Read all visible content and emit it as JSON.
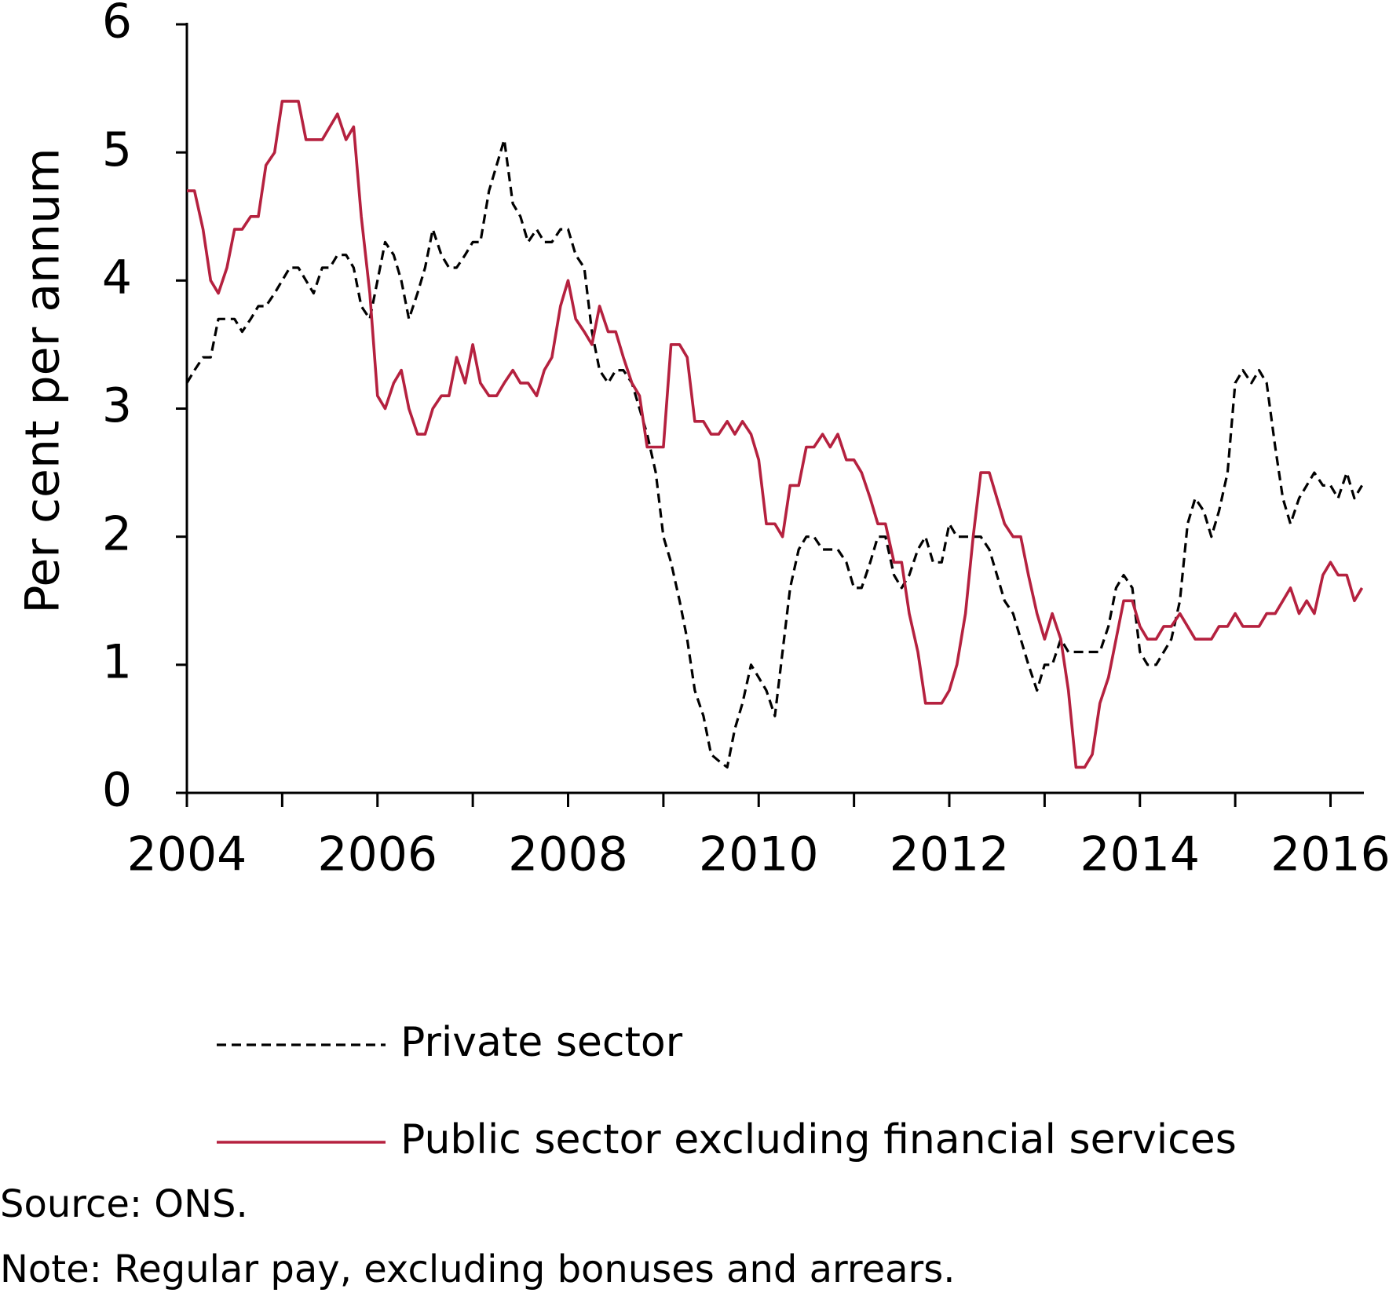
{
  "chart_data": {
    "type": "line",
    "y_label": "Per cent per annum",
    "source": "Source: ONS.",
    "note": "Note: Regular pay, excluding bonuses and arrears.",
    "xlim": [
      2004,
      2016.35
    ],
    "xticks": [
      2004,
      2006,
      2008,
      2010,
      2012,
      2014,
      2016
    ],
    "minor_xticks": [
      2005,
      2007,
      2009,
      2011,
      2013,
      2015
    ],
    "ylim": [
      0,
      6
    ],
    "yticks": [
      0,
      1,
      2,
      3,
      4,
      5,
      6
    ],
    "x": [
      2004,
      2004.08,
      2004.17,
      2004.25,
      2004.33,
      2004.42,
      2004.5,
      2004.58,
      2004.67,
      2004.75,
      2004.83,
      2004.92,
      2005,
      2005.08,
      2005.17,
      2005.25,
      2005.33,
      2005.42,
      2005.5,
      2005.58,
      2005.67,
      2005.75,
      2005.83,
      2005.92,
      2006,
      2006.08,
      2006.17,
      2006.25,
      2006.33,
      2006.42,
      2006.5,
      2006.58,
      2006.67,
      2006.75,
      2006.83,
      2006.92,
      2007,
      2007.08,
      2007.17,
      2007.25,
      2007.33,
      2007.42,
      2007.5,
      2007.58,
      2007.67,
      2007.75,
      2007.83,
      2007.92,
      2008,
      2008.08,
      2008.17,
      2008.25,
      2008.33,
      2008.42,
      2008.5,
      2008.58,
      2008.67,
      2008.75,
      2008.83,
      2008.92,
      2009,
      2009.08,
      2009.17,
      2009.25,
      2009.33,
      2009.42,
      2009.5,
      2009.58,
      2009.67,
      2009.75,
      2009.83,
      2009.92,
      2010,
      2010.08,
      2010.17,
      2010.25,
      2010.33,
      2010.42,
      2010.5,
      2010.58,
      2010.67,
      2010.75,
      2010.83,
      2010.92,
      2011,
      2011.08,
      2011.17,
      2011.25,
      2011.33,
      2011.42,
      2011.5,
      2011.58,
      2011.67,
      2011.75,
      2011.83,
      2011.92,
      2012,
      2012.08,
      2012.17,
      2012.25,
      2012.33,
      2012.42,
      2012.5,
      2012.58,
      2012.67,
      2012.75,
      2012.83,
      2012.92,
      2013,
      2013.08,
      2013.17,
      2013.25,
      2013.33,
      2013.42,
      2013.5,
      2013.58,
      2013.67,
      2013.75,
      2013.83,
      2013.92,
      2014,
      2014.08,
      2014.17,
      2014.25,
      2014.33,
      2014.42,
      2014.5,
      2014.58,
      2014.67,
      2014.75,
      2014.83,
      2014.92,
      2015,
      2015.08,
      2015.17,
      2015.25,
      2015.33,
      2015.42,
      2015.5,
      2015.58,
      2015.67,
      2015.75,
      2015.83,
      2015.92,
      2016,
      2016.08,
      2016.17,
      2016.25,
      2016.33
    ],
    "series": [
      {
        "name": "Private sector",
        "color": "#000000",
        "dashed": true,
        "values": [
          3.2,
          3.3,
          3.4,
          3.4,
          3.7,
          3.7,
          3.7,
          3.6,
          3.7,
          3.8,
          3.8,
          3.9,
          4.0,
          4.1,
          4.1,
          4.0,
          3.9,
          4.1,
          4.1,
          4.2,
          4.2,
          4.1,
          3.8,
          3.7,
          4.0,
          4.3,
          4.2,
          4.0,
          3.7,
          3.9,
          4.1,
          4.4,
          4.2,
          4.1,
          4.1,
          4.2,
          4.3,
          4.3,
          4.7,
          4.9,
          5.1,
          4.6,
          4.5,
          4.3,
          4.4,
          4.3,
          4.3,
          4.4,
          4.4,
          4.2,
          4.1,
          3.6,
          3.3,
          3.2,
          3.3,
          3.3,
          3.2,
          3.0,
          2.8,
          2.5,
          2.0,
          1.8,
          1.5,
          1.2,
          0.8,
          0.6,
          0.3,
          0.25,
          0.2,
          0.5,
          0.7,
          1.0,
          0.9,
          0.8,
          0.6,
          1.1,
          1.6,
          1.9,
          2.0,
          2.0,
          1.9,
          1.9,
          1.9,
          1.8,
          1.6,
          1.6,
          1.8,
          2.0,
          2.0,
          1.7,
          1.6,
          1.7,
          1.9,
          2.0,
          1.8,
          1.8,
          2.1,
          2.0,
          2.0,
          2.0,
          2.0,
          1.9,
          1.7,
          1.5,
          1.4,
          1.2,
          1.0,
          0.8,
          1.0,
          1.0,
          1.2,
          1.1,
          1.1,
          1.1,
          1.1,
          1.1,
          1.3,
          1.6,
          1.7,
          1.6,
          1.1,
          1.0,
          1.0,
          1.1,
          1.2,
          1.5,
          2.1,
          2.3,
          2.2,
          2.0,
          2.2,
          2.5,
          3.2,
          3.3,
          3.2,
          3.3,
          3.2,
          2.7,
          2.3,
          2.1,
          2.3,
          2.4,
          2.5,
          2.4,
          2.4,
          2.3,
          2.5,
          2.3,
          2.4
        ]
      },
      {
        "name": "Public sector excluding financial services",
        "color": "#b5213f",
        "dashed": false,
        "values": [
          4.7,
          4.7,
          4.4,
          4.0,
          3.9,
          4.1,
          4.4,
          4.4,
          4.5,
          4.5,
          4.9,
          5.0,
          5.4,
          5.4,
          5.4,
          5.1,
          5.1,
          5.1,
          5.2,
          5.3,
          5.1,
          5.2,
          4.5,
          3.9,
          3.1,
          3.0,
          3.2,
          3.3,
          3.0,
          2.8,
          2.8,
          3.0,
          3.1,
          3.1,
          3.4,
          3.2,
          3.5,
          3.2,
          3.1,
          3.1,
          3.2,
          3.3,
          3.2,
          3.2,
          3.1,
          3.3,
          3.4,
          3.8,
          4.0,
          3.7,
          3.6,
          3.5,
          3.8,
          3.6,
          3.6,
          3.4,
          3.2,
          3.1,
          2.7,
          2.7,
          2.7,
          3.5,
          3.5,
          3.4,
          2.9,
          2.9,
          2.8,
          2.8,
          2.9,
          2.8,
          2.9,
          2.8,
          2.6,
          2.1,
          2.1,
          2.0,
          2.4,
          2.4,
          2.7,
          2.7,
          2.8,
          2.7,
          2.8,
          2.6,
          2.6,
          2.5,
          2.3,
          2.1,
          2.1,
          1.8,
          1.8,
          1.4,
          1.1,
          0.7,
          0.7,
          0.7,
          0.8,
          1.0,
          1.4,
          2.0,
          2.5,
          2.5,
          2.3,
          2.1,
          2.0,
          2.0,
          1.7,
          1.4,
          1.2,
          1.4,
          1.2,
          0.8,
          0.2,
          0.2,
          0.3,
          0.7,
          0.9,
          1.2,
          1.5,
          1.5,
          1.3,
          1.2,
          1.2,
          1.3,
          1.3,
          1.4,
          1.3,
          1.2,
          1.2,
          1.2,
          1.3,
          1.3,
          1.4,
          1.3,
          1.3,
          1.3,
          1.4,
          1.4,
          1.5,
          1.6,
          1.4,
          1.5,
          1.4,
          1.7,
          1.8,
          1.7,
          1.7,
          1.5,
          1.6
        ]
      }
    ]
  }
}
